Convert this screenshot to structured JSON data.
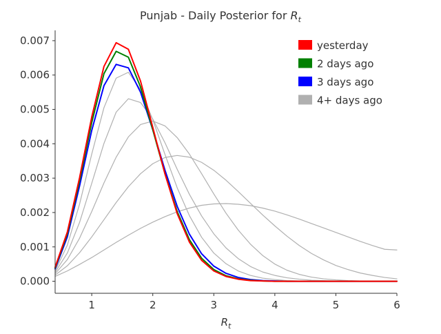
{
  "chart_data": {
    "type": "line",
    "title_prefix": "Punjab - Daily Posterior for ",
    "title_symbol": "R",
    "title_subscript": "t",
    "xlabel_symbol": "R",
    "xlabel_subscript": "t",
    "ylabel": "",
    "xlim": [
      0.4,
      6.0
    ],
    "ylim": [
      -0.00035,
      0.0073
    ],
    "x_ticks": [
      1,
      2,
      3,
      4,
      5,
      6
    ],
    "y_ticks": [
      0.0,
      0.001,
      0.002,
      0.003,
      0.004,
      0.005,
      0.006,
      0.007
    ],
    "y_tick_labels": [
      "0.000",
      "0.001",
      "0.002",
      "0.003",
      "0.004",
      "0.005",
      "0.006",
      "0.007"
    ],
    "x_tick_labels": [
      "1",
      "2",
      "3",
      "4",
      "5",
      "6"
    ],
    "grid": false,
    "legend_position": "top-right",
    "legend": [
      {
        "label": "yesterday",
        "color": "#ff0000"
      },
      {
        "label": "2 days ago",
        "color": "#008000"
      },
      {
        "label": "3 days ago",
        "color": "#0000ff"
      },
      {
        "label": "4+ days ago",
        "color": "#b0b0b0"
      }
    ],
    "x": [
      0.4,
      0.6,
      0.8,
      1.0,
      1.2,
      1.4,
      1.6,
      1.8,
      2.0,
      2.2,
      2.4,
      2.6,
      2.8,
      3.0,
      3.2,
      3.4,
      3.6,
      3.8,
      4.0,
      4.2,
      4.4,
      4.6,
      4.8,
      5.0,
      5.2,
      5.4,
      5.6,
      5.8,
      6.0
    ],
    "series": [
      {
        "name": "4+ days ago",
        "group": "older",
        "color": "#b0b0b0",
        "values": [
          0.00014,
          0.0003,
          0.00049,
          0.00069,
          0.00091,
          0.00113,
          0.00134,
          0.00154,
          0.00172,
          0.00188,
          0.00202,
          0.00213,
          0.00221,
          0.00225,
          0.00226,
          0.00224,
          0.0022,
          0.00213,
          0.00204,
          0.00193,
          0.00181,
          0.00168,
          0.00155,
          0.00142,
          0.00129,
          0.00116,
          0.00104,
          0.00093,
          0.00091
        ]
      },
      {
        "name": "4+ days ago",
        "group": "older",
        "color": "#b0b0b0",
        "values": [
          0.00018,
          0.00045,
          0.00083,
          0.00129,
          0.00179,
          0.00229,
          0.00275,
          0.00313,
          0.00342,
          0.0036,
          0.00366,
          0.00361,
          0.00346,
          0.00323,
          0.00294,
          0.00261,
          0.00227,
          0.00193,
          0.00161,
          0.00131,
          0.00104,
          0.00081,
          0.00062,
          0.00046,
          0.00034,
          0.00024,
          0.00017,
          0.00011,
          7e-05
        ]
      },
      {
        "name": "4+ days ago",
        "group": "older",
        "color": "#b0b0b0",
        "values": [
          0.00022,
          0.00063,
          0.00125,
          0.00203,
          0.00286,
          0.00361,
          0.0042,
          0.00456,
          0.00466,
          0.00452,
          0.00418,
          0.0037,
          0.00313,
          0.00254,
          0.00198,
          0.00149,
          0.00108,
          0.00075,
          0.0005,
          0.00032,
          0.0002,
          0.00012,
          7e-05,
          4e-05,
          2e-05,
          1e-05,
          0.0,
          0.0,
          0.0
        ]
      },
      {
        "name": "4+ days ago",
        "group": "older",
        "color": "#b0b0b0",
        "values": [
          0.00026,
          0.00082,
          0.00171,
          0.00285,
          0.00401,
          0.00492,
          0.00531,
          0.0052,
          0.00472,
          0.00403,
          0.00326,
          0.00253,
          0.0019,
          0.00138,
          0.00097,
          0.00066,
          0.00043,
          0.00027,
          0.00017,
          0.0001,
          6e-05,
          3e-05,
          2e-05,
          1e-05,
          0.0,
          0.0,
          0.0,
          0.0,
          0.0
        ]
      },
      {
        "name": "4+ days ago",
        "group": "older",
        "color": "#b0b0b0",
        "values": [
          0.0003,
          0.00105,
          0.00224,
          0.0037,
          0.00505,
          0.00591,
          0.00608,
          0.00558,
          0.0047,
          0.00369,
          0.00272,
          0.00191,
          0.00128,
          0.00082,
          0.00051,
          0.0003,
          0.00017,
          9e-05,
          5e-05,
          2e-05,
          1e-05,
          0.0,
          0.0,
          0.0,
          0.0,
          0.0,
          0.0,
          0.0,
          0.0
        ]
      },
      {
        "name": "3 days ago",
        "group": "main",
        "color": "#0000ff",
        "values": [
          0.00036,
          0.00129,
          0.00277,
          0.00439,
          0.00569,
          0.00631,
          0.00621,
          0.0055,
          0.00441,
          0.00323,
          0.00218,
          0.00137,
          0.0008,
          0.00044,
          0.00023,
          0.00011,
          5e-05,
          2e-05,
          1e-05,
          0.0,
          0.0,
          0.0,
          0.0,
          0.0,
          0.0,
          0.0,
          0.0,
          0.0,
          0.0
        ]
      },
      {
        "name": "2 days ago",
        "group": "main",
        "color": "#008000",
        "values": [
          0.00039,
          0.00138,
          0.00292,
          0.00462,
          0.00604,
          0.00669,
          0.00652,
          0.00565,
          0.00441,
          0.00313,
          0.00203,
          0.00121,
          0.00067,
          0.00034,
          0.00016,
          7e-05,
          3e-05,
          1e-05,
          0.0,
          0.0,
          0.0,
          0.0,
          0.0,
          0.0,
          0.0,
          0.0,
          0.0,
          0.0,
          0.0
        ]
      },
      {
        "name": "yesterday",
        "group": "main",
        "color": "#ff0000",
        "values": [
          0.00041,
          0.00143,
          0.00301,
          0.00478,
          0.00625,
          0.00694,
          0.00675,
          0.00582,
          0.00448,
          0.00312,
          0.00197,
          0.00114,
          0.00061,
          0.0003,
          0.00014,
          6e-05,
          2e-05,
          1e-05,
          0.0,
          0.0,
          0.0,
          0.0,
          0.0,
          0.0,
          0.0,
          0.0,
          0.0,
          0.0,
          0.0
        ]
      }
    ]
  }
}
